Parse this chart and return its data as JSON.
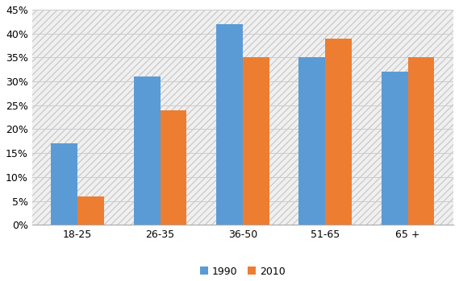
{
  "categories": [
    "18-25",
    "26-35",
    "36-50",
    "51-65",
    "65 +"
  ],
  "values_1990": [
    0.17,
    0.31,
    0.42,
    0.35,
    0.32
  ],
  "values_2010": [
    0.06,
    0.24,
    0.35,
    0.39,
    0.35
  ],
  "color_1990": "#5B9BD5",
  "color_2010": "#ED7D31",
  "ylim": [
    0,
    0.45
  ],
  "yticks": [
    0,
    0.05,
    0.1,
    0.15,
    0.2,
    0.25,
    0.3,
    0.35,
    0.4,
    0.45
  ],
  "legend_labels": [
    "1990",
    "2010"
  ],
  "bar_width": 0.32,
  "figure_bg": "#FFFFFF",
  "plot_bg": "#FFFFFF",
  "hatch_color": "#CCCCCC",
  "grid_color": "#CCCCCC"
}
